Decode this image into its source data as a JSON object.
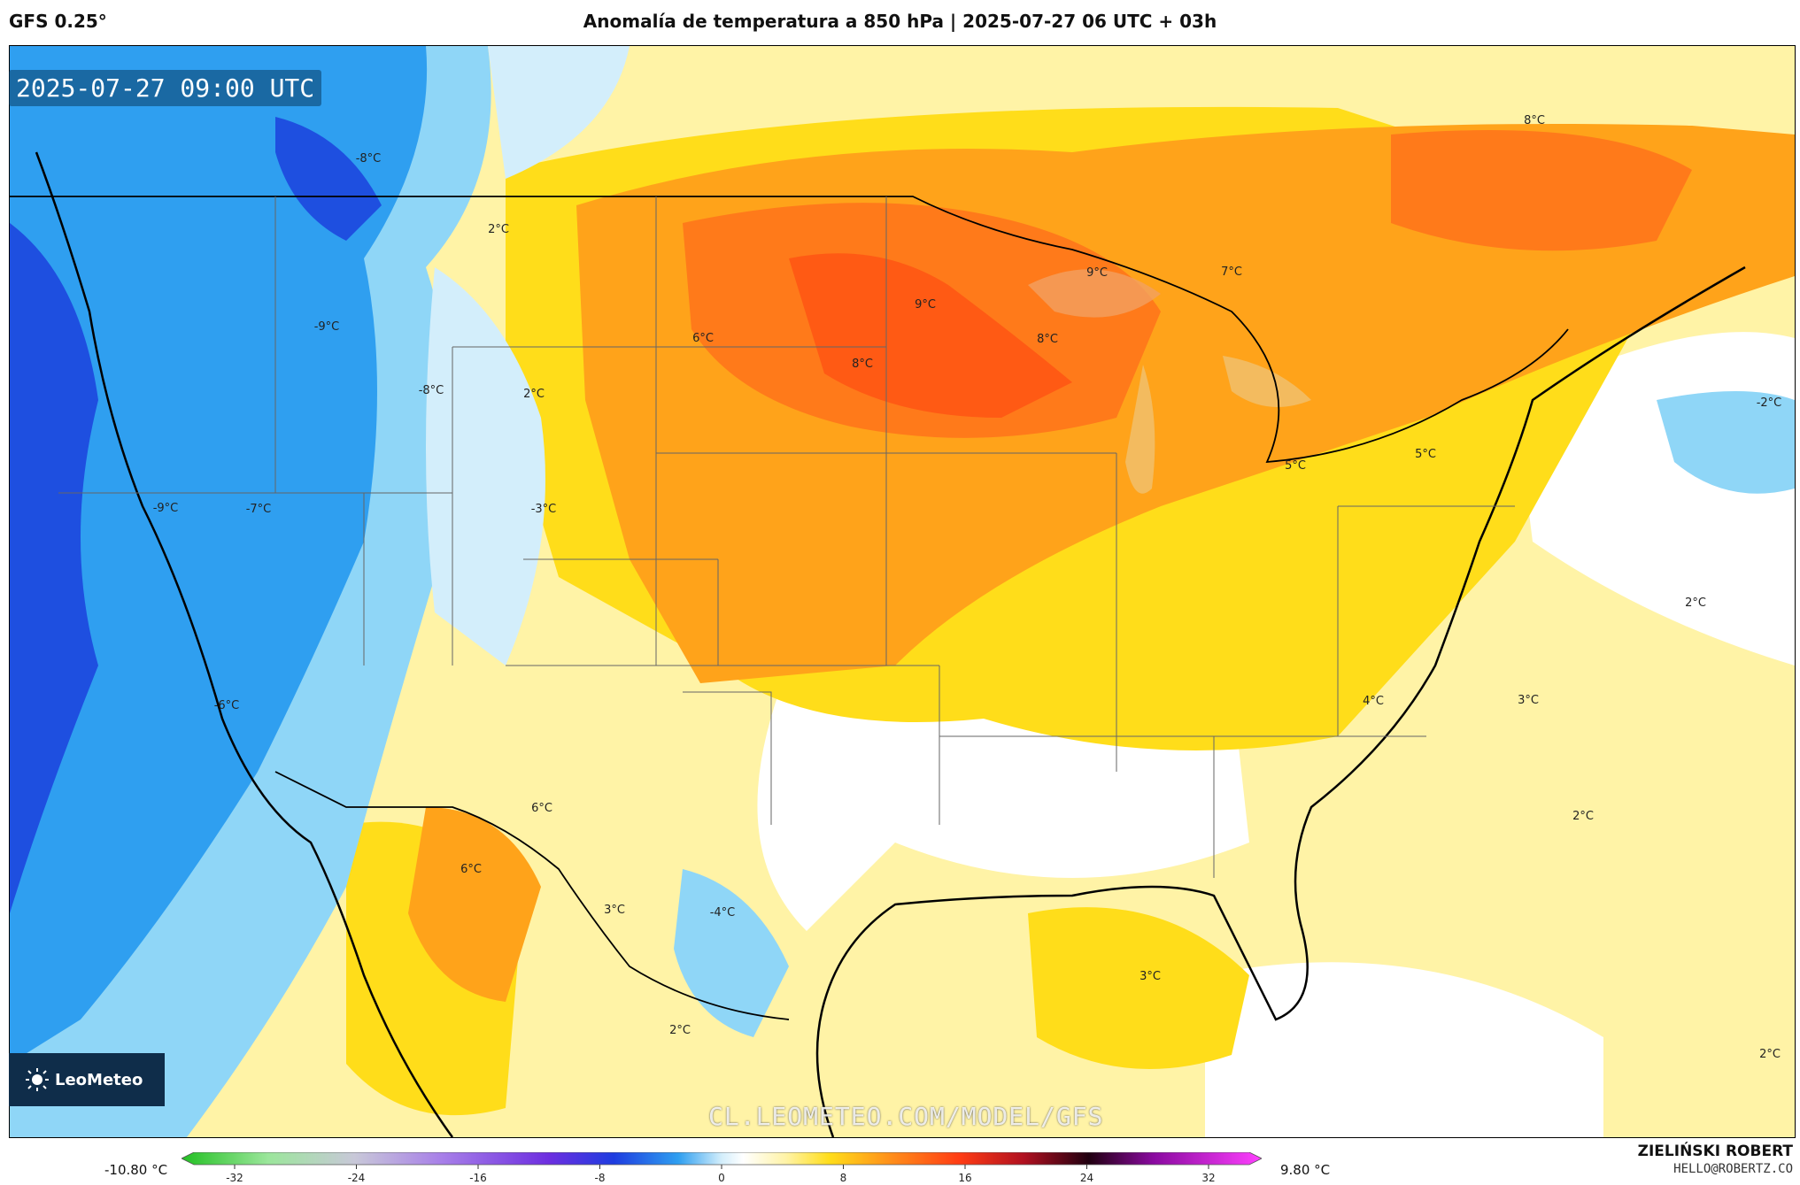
{
  "header": {
    "model": "GFS 0.25°",
    "title": "Anomalía de temperatura a 850 hPa | 2025-07-27 06 UTC + 03h"
  },
  "map": {
    "timestamp": "2025-07-27 09:00 UTC",
    "watermark": "CL.LEOMETEO.COM/MODEL/GFS",
    "logo_text": "LeoMeteo",
    "labels": [
      "-8°C",
      "2°C",
      "-9°C",
      "-8°C",
      "2°C",
      "-9°C",
      "-7°C",
      "-3°C",
      "-6°C",
      "6°C",
      "8°C",
      "9°C",
      "8°C",
      "9°C",
      "7°C",
      "8°C",
      "5°C",
      "5°C",
      "-2°C",
      "2°C",
      "4°C",
      "3°C",
      "2°C",
      "6°C",
      "6°C",
      "3°C",
      "-4°C",
      "2°C",
      "3°C",
      "2°C"
    ],
    "colors": {
      "deep_blue": "#1e4fe0",
      "blue": "#2f9ff0",
      "light_blue": "#8fd6f7",
      "pale_blue": "#d3eefb",
      "white": "#ffffff",
      "pale_yellow": "#fff3a6",
      "yellow": "#ffdd1a",
      "orange": "#ffa31a",
      "dark_orange": "#ff7a1a",
      "red_orange": "#ff5a14"
    }
  },
  "legend": {
    "min_label": "-10.80 °C",
    "max_label": "9.80 °C",
    "ticks": [
      "-32",
      "-24",
      "-16",
      "-8",
      "0",
      "8",
      "16",
      "24",
      "32"
    ]
  },
  "credit": {
    "name": "ZIELIŃSKI ROBERT",
    "email": "HELLO@ROBERTZ.CO"
  }
}
